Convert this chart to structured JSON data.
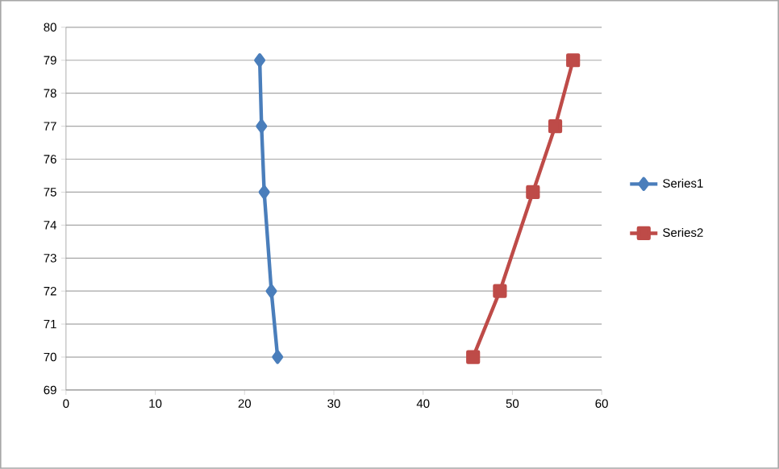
{
  "chart_data": {
    "type": "line",
    "xlim": [
      0,
      60
    ],
    "ylim": [
      69,
      80
    ],
    "xticks": [
      0,
      10,
      20,
      30,
      40,
      50,
      60
    ],
    "yticks": [
      69,
      70,
      71,
      72,
      73,
      74,
      75,
      76,
      77,
      78,
      79,
      80
    ],
    "grid": "y",
    "legend": "right",
    "line_style": "solid",
    "series": [
      {
        "name": "Series1",
        "color": "#4a7ebb",
        "marker": "diamond",
        "x": [
          21.7,
          21.9,
          22.2,
          23.0,
          23.7
        ],
        "values": [
          79,
          77,
          75,
          72,
          70
        ]
      },
      {
        "name": "Series2",
        "color": "#be4b48",
        "marker": "square",
        "x": [
          45.6,
          48.6,
          52.3,
          54.8,
          56.8
        ],
        "values": [
          70,
          72,
          75,
          77,
          79
        ]
      }
    ]
  }
}
